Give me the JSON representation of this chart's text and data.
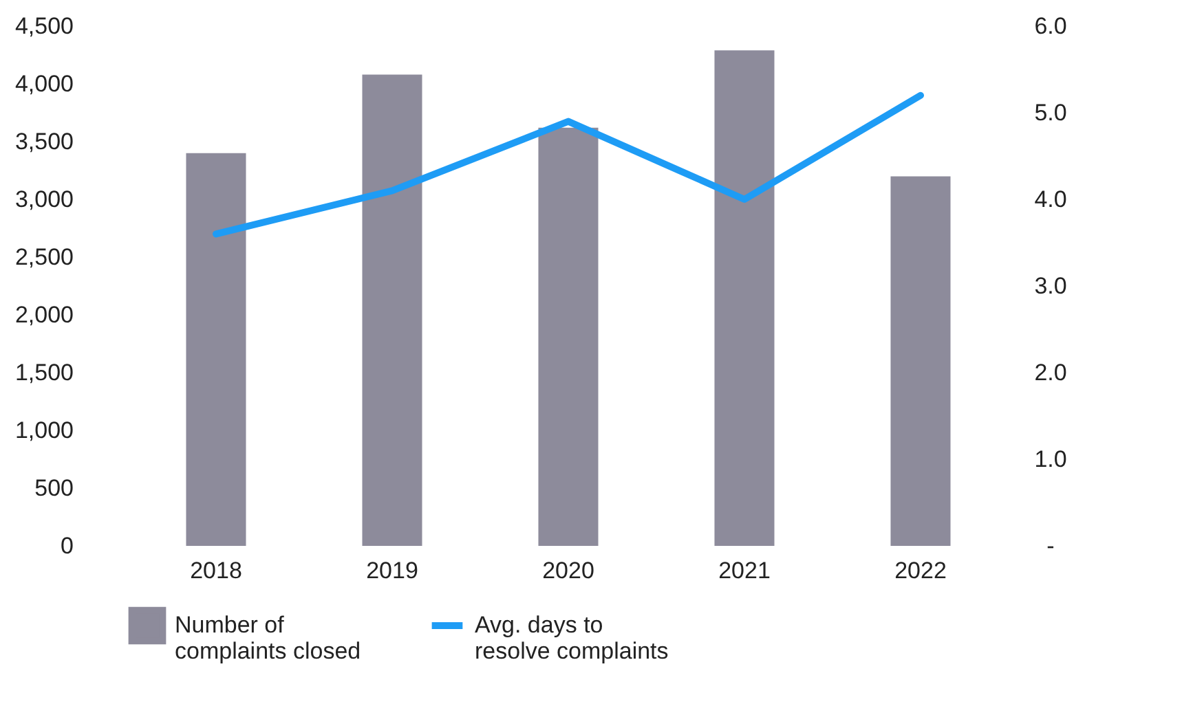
{
  "chart_data": {
    "type": "bar",
    "categories": [
      "2018",
      "2019",
      "2020",
      "2021",
      "2022"
    ],
    "series": [
      {
        "name": "Number of complaints closed",
        "color": "#8d8b9b",
        "values": [
          3400,
          4080,
          3620,
          4290,
          3200
        ]
      },
      {
        "name": "Avg. days to resolve complaints",
        "type": "line",
        "axis": "y2",
        "color": "#1e9cf5",
        "values": [
          3.6,
          4.1,
          4.9,
          4.0,
          5.2
        ]
      }
    ],
    "ylim": [
      0,
      4500
    ],
    "yticks": [
      0,
      500,
      {
        "value": 1000,
        "label": "1,000"
      },
      {
        "value": 1500,
        "label": "1,500"
      },
      {
        "value": 2000,
        "label": "2,000"
      },
      {
        "value": 2500,
        "label": "2,500"
      },
      {
        "value": 3000,
        "label": "3,000"
      },
      {
        "value": 3500,
        "label": "3,500"
      },
      {
        "value": 4000,
        "label": "4,000"
      },
      {
        "value": 4500,
        "label": "4,500"
      }
    ],
    "y2lim": [
      0,
      6
    ],
    "y2ticks": [
      {
        "value": 0,
        "label": "-"
      },
      {
        "value": 1,
        "label": "1.0"
      },
      {
        "value": 2,
        "label": "2.0"
      },
      {
        "value": 3,
        "label": "3.0"
      },
      {
        "value": 4,
        "label": "4.0"
      },
      {
        "value": 5,
        "label": "5.0"
      },
      {
        "value": 6,
        "label": "6.0"
      }
    ],
    "grid": false,
    "legend": "bottom",
    "marker": "none",
    "line_style": "solid"
  }
}
